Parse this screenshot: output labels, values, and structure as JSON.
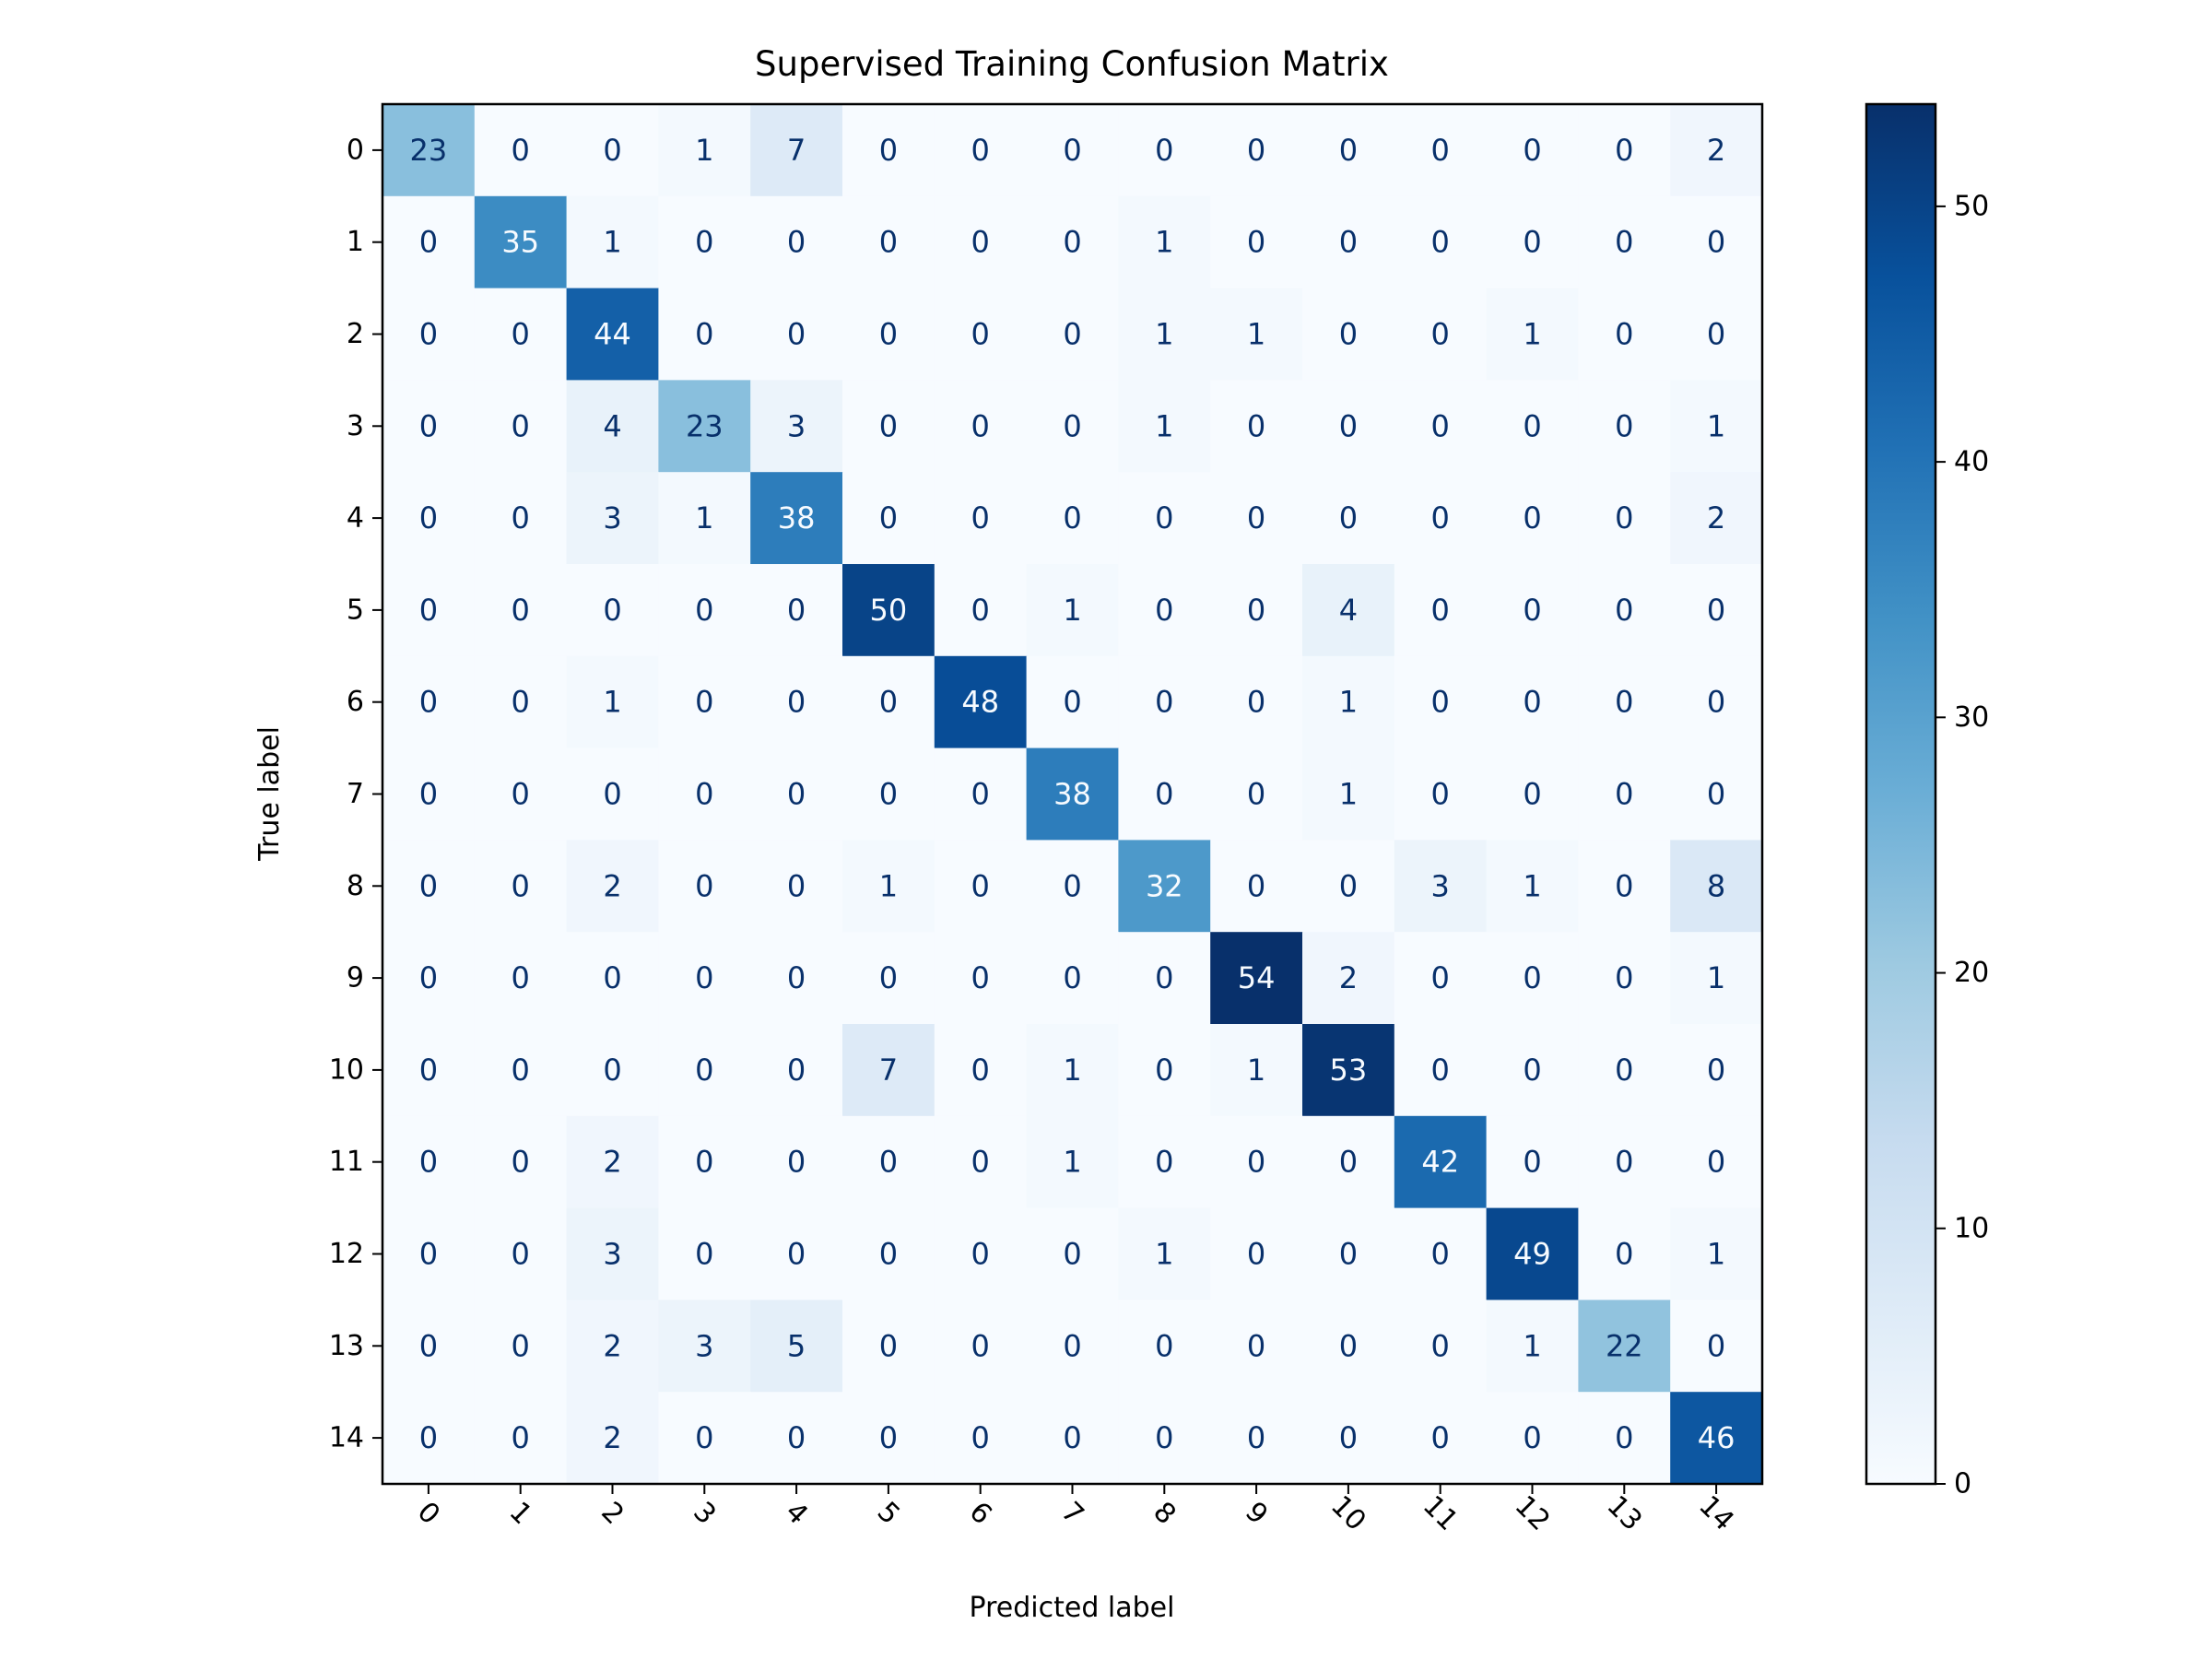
{
  "chart_data": {
    "type": "heatmap",
    "title": "Supervised Training Confusion Matrix",
    "xlabel": "Predicted label",
    "ylabel": "True label",
    "x_tick_labels": [
      "0",
      "1",
      "2",
      "3",
      "4",
      "5",
      "6",
      "7",
      "8",
      "9",
      "10",
      "11",
      "12",
      "13",
      "14"
    ],
    "y_tick_labels": [
      "0",
      "1",
      "2",
      "3",
      "4",
      "5",
      "6",
      "7",
      "8",
      "9",
      "10",
      "11",
      "12",
      "13",
      "14"
    ],
    "matrix": [
      [
        23,
        0,
        0,
        1,
        7,
        0,
        0,
        0,
        0,
        0,
        0,
        0,
        0,
        0,
        2
      ],
      [
        0,
        35,
        1,
        0,
        0,
        0,
        0,
        0,
        1,
        0,
        0,
        0,
        0,
        0,
        0
      ],
      [
        0,
        0,
        44,
        0,
        0,
        0,
        0,
        0,
        1,
        1,
        0,
        0,
        1,
        0,
        0
      ],
      [
        0,
        0,
        4,
        23,
        3,
        0,
        0,
        0,
        1,
        0,
        0,
        0,
        0,
        0,
        1
      ],
      [
        0,
        0,
        3,
        1,
        38,
        0,
        0,
        0,
        0,
        0,
        0,
        0,
        0,
        0,
        2
      ],
      [
        0,
        0,
        0,
        0,
        0,
        50,
        0,
        1,
        0,
        0,
        4,
        0,
        0,
        0,
        0
      ],
      [
        0,
        0,
        1,
        0,
        0,
        0,
        48,
        0,
        0,
        0,
        1,
        0,
        0,
        0,
        0
      ],
      [
        0,
        0,
        0,
        0,
        0,
        0,
        0,
        38,
        0,
        0,
        1,
        0,
        0,
        0,
        0
      ],
      [
        0,
        0,
        2,
        0,
        0,
        1,
        0,
        0,
        32,
        0,
        0,
        3,
        1,
        0,
        8
      ],
      [
        0,
        0,
        0,
        0,
        0,
        0,
        0,
        0,
        0,
        54,
        2,
        0,
        0,
        0,
        1
      ],
      [
        0,
        0,
        0,
        0,
        0,
        7,
        0,
        1,
        0,
        1,
        53,
        0,
        0,
        0,
        0
      ],
      [
        0,
        0,
        2,
        0,
        0,
        0,
        0,
        1,
        0,
        0,
        0,
        42,
        0,
        0,
        0
      ],
      [
        0,
        0,
        3,
        0,
        0,
        0,
        0,
        0,
        1,
        0,
        0,
        0,
        49,
        0,
        1
      ],
      [
        0,
        0,
        2,
        3,
        5,
        0,
        0,
        0,
        0,
        0,
        0,
        0,
        1,
        22,
        0
      ],
      [
        0,
        0,
        2,
        0,
        0,
        0,
        0,
        0,
        0,
        0,
        0,
        0,
        0,
        0,
        46
      ]
    ],
    "colormap": "Blues",
    "vmin": 0,
    "vmax": 54,
    "colorbar_ticks": [
      0,
      10,
      20,
      30,
      40,
      50
    ],
    "colorbar_tick_labels": [
      "0",
      "10",
      "20",
      "30",
      "40",
      "50"
    ],
    "text_color_dark": "#08306b",
    "text_color_light": "#f7fbff",
    "x_tick_rotation_deg": 45
  }
}
